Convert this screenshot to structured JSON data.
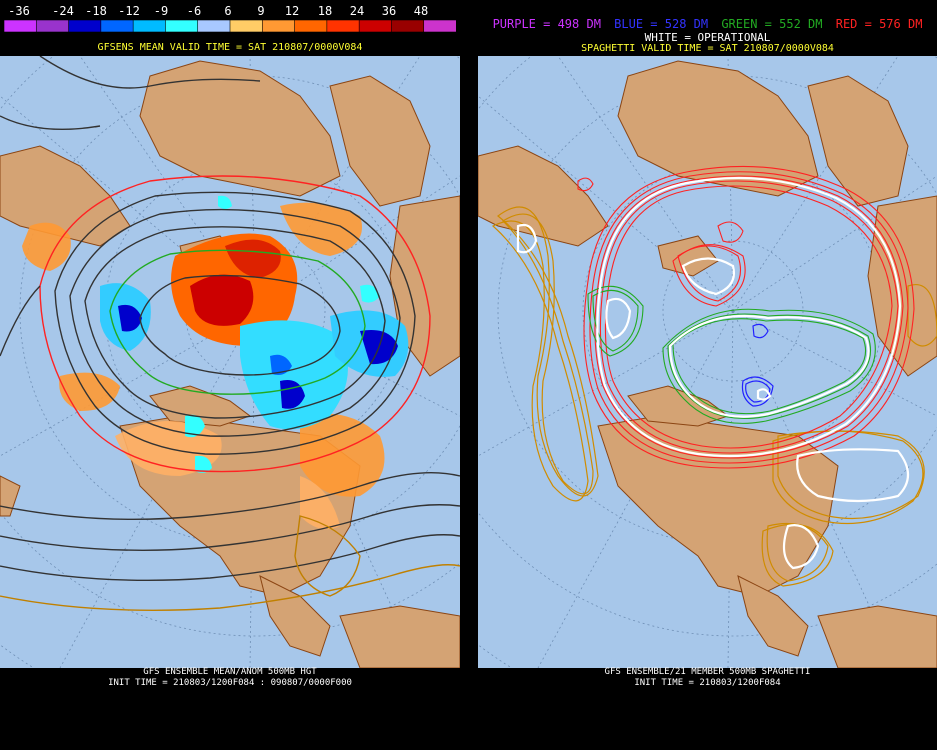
{
  "left": {
    "colorbar": {
      "labels": [
        "-36",
        "-24",
        "-18",
        "-12",
        "-9",
        "-6",
        "6",
        "9",
        "12",
        "18",
        "24",
        "36",
        "48"
      ],
      "colors": [
        "#cc33ff",
        "#9933cc",
        "#0000cc",
        "#0066ff",
        "#00bbff",
        "#33ffff",
        "#a8c8ff",
        "#ffcc66",
        "#ff9933",
        "#ff6600",
        "#ff3300",
        "#cc0000",
        "#990000",
        "#cc33cc"
      ]
    },
    "title": "GFSENS MEAN VALID TIME = SAT 210807/0000V084",
    "bottom": {
      "line1": "GFS ENSEMBLE MEAN/ANOM 500MB HGT",
      "line2": "INIT TIME = 210803/1200F084 : 090807/0000F000"
    }
  },
  "right": {
    "legend": [
      {
        "text": "PURPLE = 498 DM",
        "color": "#cc33ff"
      },
      {
        "text": "BLUE = 528 DM",
        "color": "#3333ff"
      },
      {
        "text": "GREEN = 552 DM",
        "color": "#22aa22"
      },
      {
        "text": "RED = 576 DM",
        "color": "#ff2222"
      }
    ],
    "operational": "WHITE = OPERATIONAL",
    "title": "SPAGHETTI VALID TIME = SAT 210807/0000V084",
    "bottom": {
      "line1": "GFS ENSEMBLE/21 MEMBER 500MB SPAGHETTI",
      "line2": "INIT TIME = 210803/1200F084"
    }
  },
  "colors": {
    "ocean": "#a7c7ea",
    "land": "#d4a374",
    "coast": "#8b4513",
    "caption": "#ffff33"
  }
}
